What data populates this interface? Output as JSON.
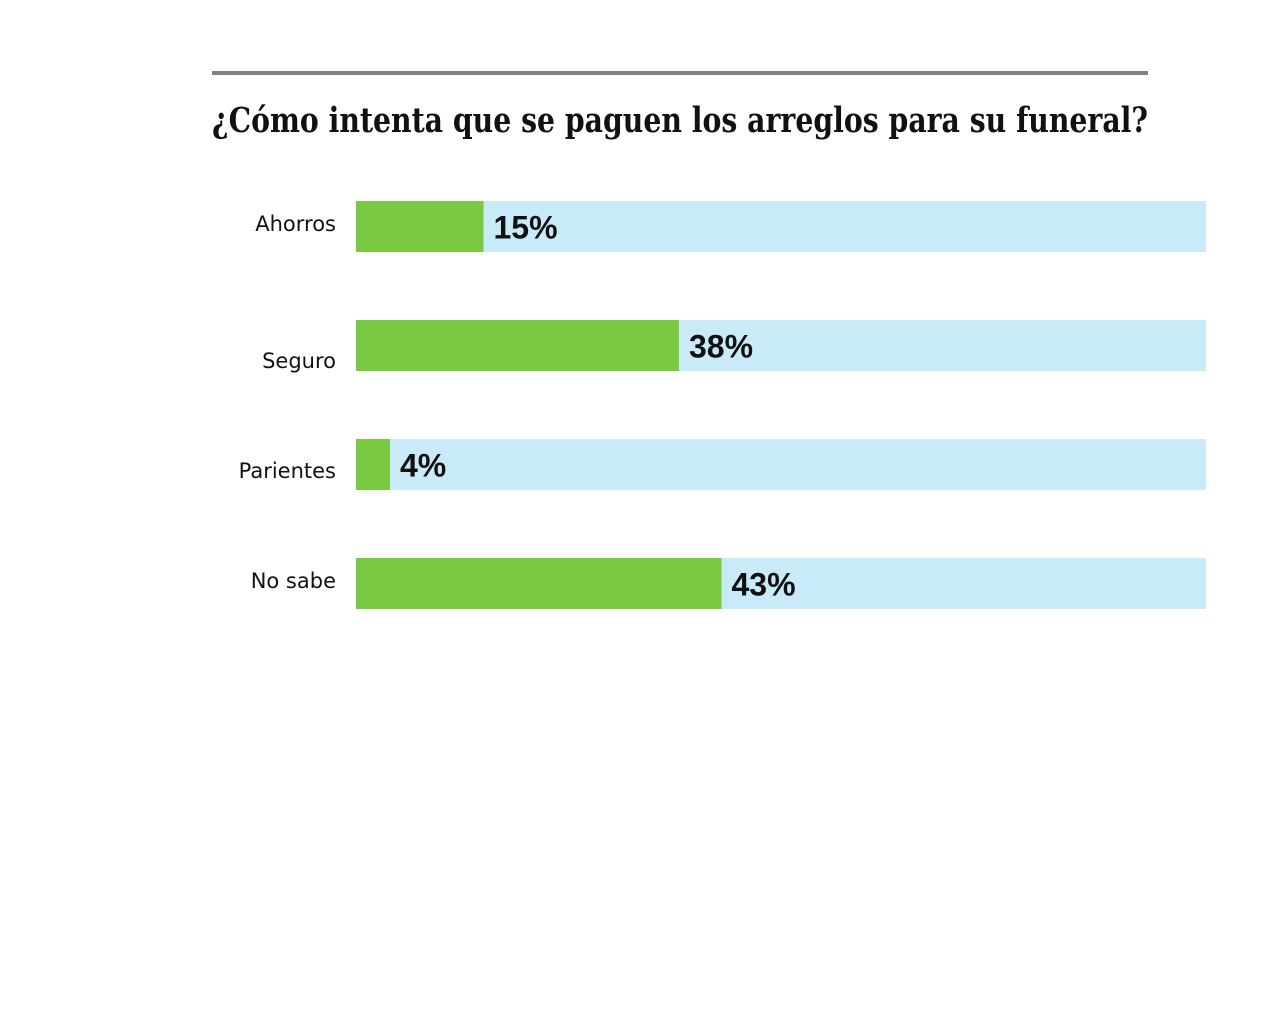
{
  "chart_data": {
    "type": "bar",
    "orientation": "horizontal",
    "title": "¿Cómo intenta que se paguen los arreglos para su funeral?",
    "categories": [
      "Ahorros",
      "Seguro",
      "Parientes",
      "No sabe"
    ],
    "values": [
      15,
      38,
      4,
      43
    ],
    "value_labels": [
      "15%",
      "38%",
      "4%",
      "43%"
    ],
    "unit": "%",
    "xlim": [
      0,
      100
    ],
    "grid": false,
    "legend": "none",
    "colors": {
      "bar": "#7ac943",
      "track": "#c9eaf8",
      "title_rule": "#808080",
      "text": "#111111"
    }
  }
}
